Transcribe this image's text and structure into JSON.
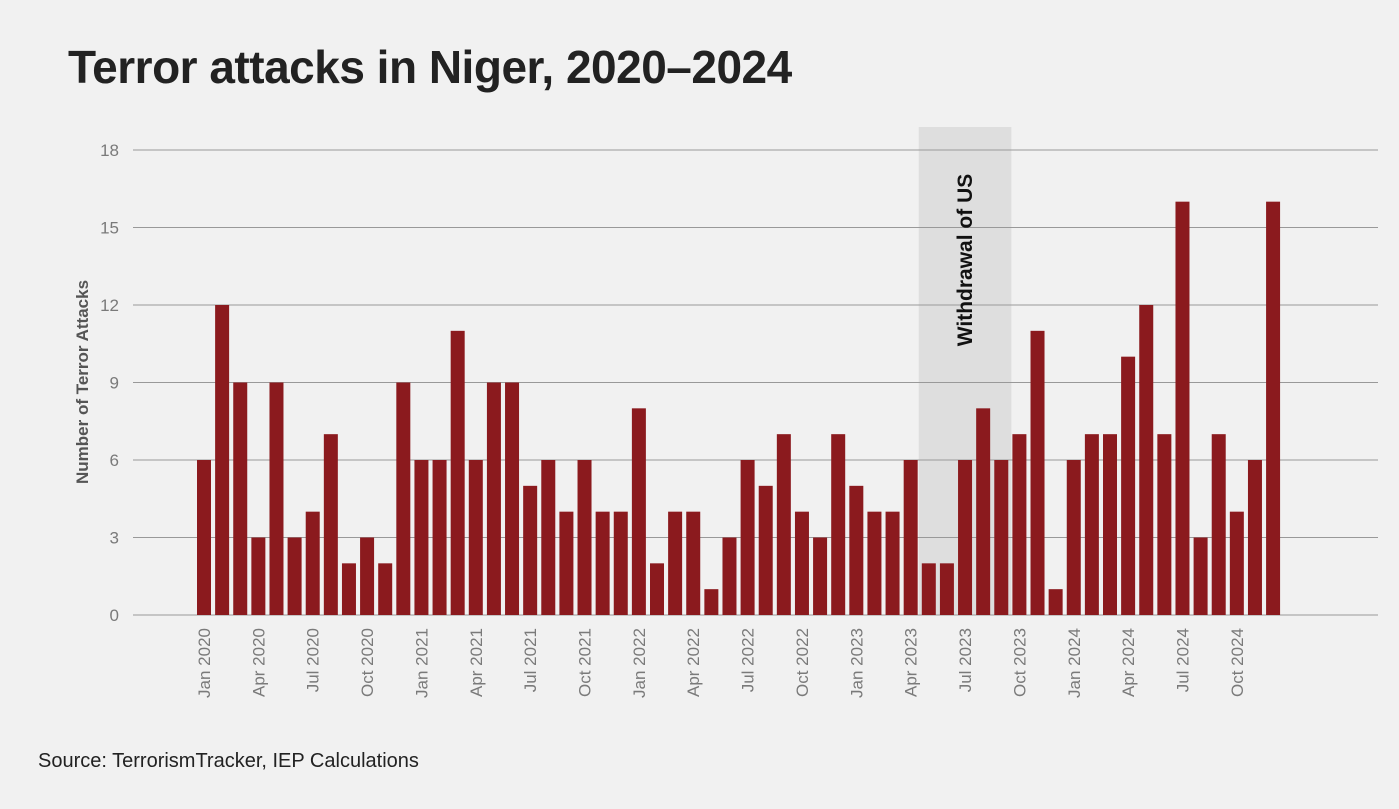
{
  "title": "Terror attacks in Niger, 2020–2024",
  "source": "Source: TerrorismTracker, IEP Calculations",
  "colors": {
    "bar": "#8b1a1e",
    "shade": "#dedede",
    "grid": "#999999",
    "tick_text": "#7a7a7a",
    "axis_title": "#555555",
    "annotation_text": "#111111"
  },
  "chart_data": {
    "type": "bar",
    "ylabel": "Number of Terror Attacks",
    "xlabel": "",
    "ylim": [
      0,
      18
    ],
    "yticks": [
      0,
      3,
      6,
      9,
      12,
      15,
      18
    ],
    "grid": true,
    "categories": [
      "Jan 2020",
      "Feb 2020",
      "Mar 2020",
      "Apr 2020",
      "May 2020",
      "Jun 2020",
      "Jul 2020",
      "Aug 2020",
      "Sep 2020",
      "Oct 2020",
      "Nov 2020",
      "Dec 2020",
      "Jan 2021",
      "Feb 2021",
      "Mar 2021",
      "Apr 2021",
      "May 2021",
      "Jun 2021",
      "Jul 2021",
      "Aug 2021",
      "Sep 2021",
      "Oct 2021",
      "Nov 2021",
      "Dec 2021",
      "Jan 2022",
      "Feb 2022",
      "Mar 2022",
      "Apr 2022",
      "May 2022",
      "Jun 2022",
      "Jul 2022",
      "Aug 2022",
      "Sep 2022",
      "Oct 2022",
      "Nov 2022",
      "Dec 2022",
      "Jan 2023",
      "Feb 2023",
      "Mar 2023",
      "Apr 2023",
      "May 2023",
      "Jun 2023",
      "Jul 2023",
      "Aug 2023",
      "Sep 2023",
      "Oct 2023",
      "Nov 2023",
      "Dec 2023",
      "Jan 2024",
      "Feb 2024",
      "Mar 2024",
      "Apr 2024",
      "May 2024",
      "Jun 2024",
      "Jul 2024",
      "Aug 2024",
      "Sep 2024",
      "Oct 2024",
      "Nov 2024",
      "Dec 2024"
    ],
    "values": [
      6,
      12,
      9,
      3,
      9,
      3,
      4,
      7,
      2,
      3,
      2,
      9,
      6,
      6,
      11,
      6,
      9,
      9,
      5,
      6,
      4,
      6,
      4,
      4,
      8,
      2,
      4,
      4,
      1,
      3,
      6,
      5,
      7,
      4,
      3,
      7,
      5,
      4,
      4,
      6,
      2,
      2,
      6,
      8,
      6,
      7,
      11,
      1,
      6,
      7,
      7,
      10,
      12,
      7,
      16,
      3,
      7,
      4,
      6,
      16
    ],
    "xtick_labels": [
      "Jan 2020",
      "Apr 2020",
      "Jul 2020",
      "Oct 2020",
      "Jan 2021",
      "Apr 2021",
      "Jul 2021",
      "Oct 2021",
      "Jan 2022",
      "Apr 2022",
      "Jul 2022",
      "Oct 2022",
      "Jan 2023",
      "Apr 2023",
      "Jul 2023",
      "Oct 2023",
      "Jan 2024",
      "Apr 2024",
      "Jul 2024",
      "Oct 2024"
    ],
    "annotation": {
      "label": "Withdrawal of US",
      "from": "May 2023",
      "to": "Sep 2023"
    }
  }
}
